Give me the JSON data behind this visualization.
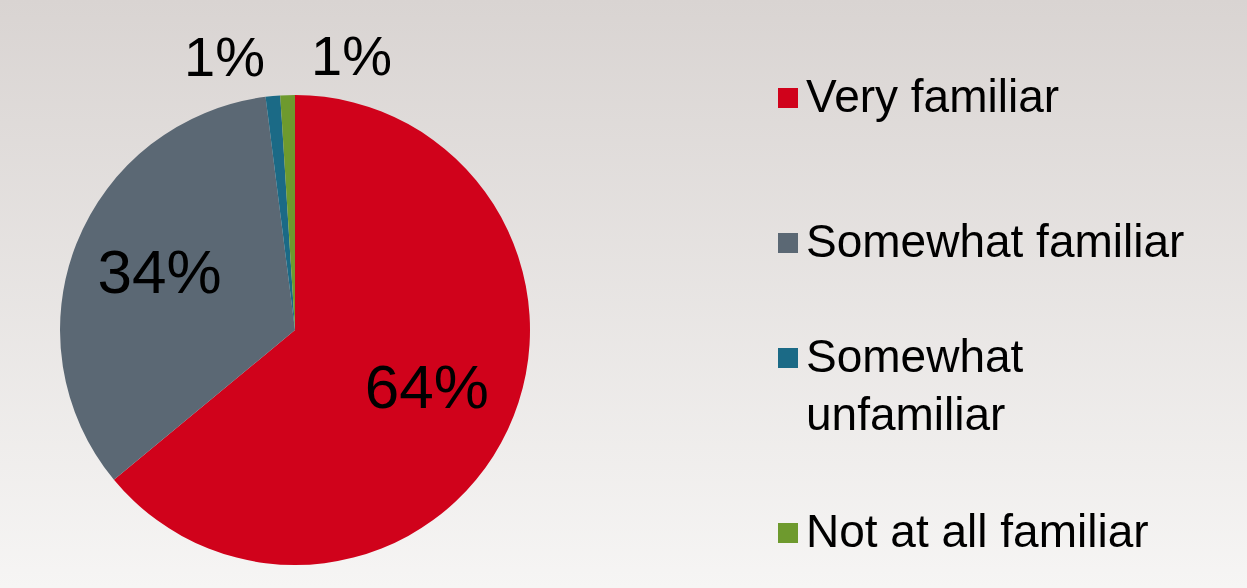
{
  "chart_data": {
    "type": "pie",
    "categories": [
      "Very familiar",
      "Somewhat familiar",
      "Somewhat unfamiliar",
      "Not at all familiar"
    ],
    "values": [
      64,
      34,
      1,
      1
    ],
    "value_labels": [
      "64%",
      "34%",
      "1%",
      "1%"
    ],
    "colors": [
      "#d0021b",
      "#5b6874",
      "#1b6a86",
      "#6e9a2e"
    ],
    "legend": "right"
  }
}
